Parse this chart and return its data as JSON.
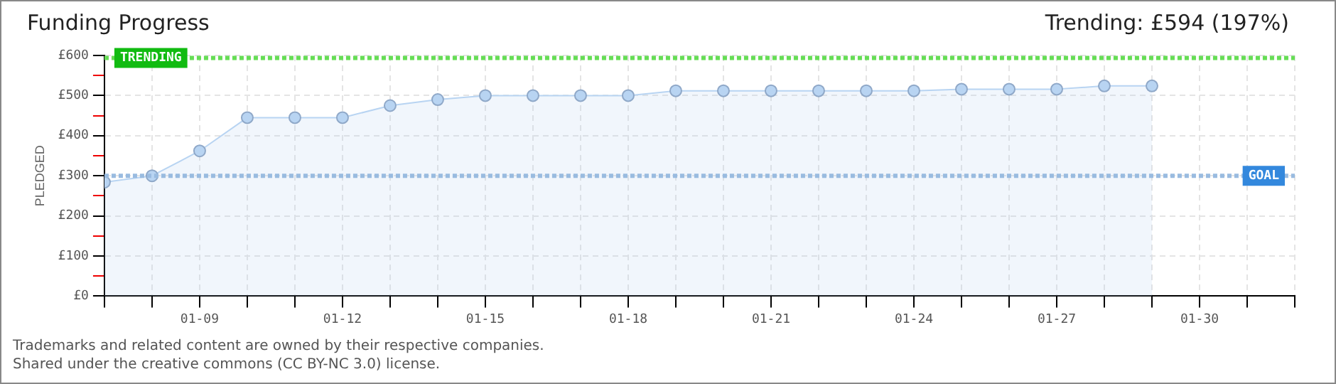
{
  "chart_data": {
    "type": "area",
    "title": "Funding Progress",
    "subtitle": "Trending: £594 (197%)",
    "ylabel": "PLEDGED",
    "x": [
      "--01-07",
      "--01-08",
      "--01-09",
      "--01-10",
      "--01-11",
      "--01-12",
      "--01-13",
      "--01-14",
      "--01-15",
      "--01-16",
      "--01-17",
      "--01-18",
      "--01-19",
      "--01-20",
      "--01-21",
      "--01-22",
      "--01-23",
      "--01-24",
      "--01-25",
      "--01-26",
      "--01-27",
      "--01-28",
      "--01-29"
    ],
    "series": [
      {
        "color": "#b8d4f2",
        "values": [
          284,
          300,
          362,
          445,
          445,
          445,
          475,
          490,
          500,
          500,
          500,
          500,
          512,
          512,
          512,
          512,
          512,
          512,
          516,
          516,
          516,
          524,
          524
        ]
      }
    ],
    "xlim": [
      "--01-07",
      "--02-01"
    ],
    "xticks": [
      {
        "value": "--01-07",
        "label": null
      },
      {
        "value": "--01-08",
        "label": null
      },
      {
        "value": "--01-09",
        "label": "01-09"
      },
      {
        "value": "--01-10",
        "label": null
      },
      {
        "value": "--01-11",
        "label": null
      },
      {
        "value": "--01-12",
        "label": "01-12"
      },
      {
        "value": "--01-13",
        "label": null
      },
      {
        "value": "--01-14",
        "label": null
      },
      {
        "value": "--01-15",
        "label": "01-15"
      },
      {
        "value": "--01-16",
        "label": null
      },
      {
        "value": "--01-17",
        "label": null
      },
      {
        "value": "--01-18",
        "label": "01-18"
      },
      {
        "value": "--01-19",
        "label": null
      },
      {
        "value": "--01-20",
        "label": null
      },
      {
        "value": "--01-21",
        "label": "01-21"
      },
      {
        "value": "--01-22",
        "label": null
      },
      {
        "value": "--01-23",
        "label": null
      },
      {
        "value": "--01-24",
        "label": "01-24"
      },
      {
        "value": "--01-25",
        "label": null
      },
      {
        "value": "--01-26",
        "label": null
      },
      {
        "value": "--01-27",
        "label": "01-27"
      },
      {
        "value": "--01-28",
        "label": null
      },
      {
        "value": "--01-29",
        "label": null
      },
      {
        "value": "--01-30",
        "label": "01-30"
      },
      {
        "value": "--01-31",
        "label": null
      },
      {
        "value": "--02-01",
        "label": null
      }
    ],
    "ylim": [
      0,
      600
    ],
    "yticks": [
      {
        "value": 0,
        "label": "£0"
      },
      {
        "value": 50,
        "label": null
      },
      {
        "value": 100,
        "label": "£100"
      },
      {
        "value": 150,
        "label": null
      },
      {
        "value": 200,
        "label": "£200"
      },
      {
        "value": 250,
        "label": null
      },
      {
        "value": 300,
        "label": "£300"
      },
      {
        "value": 350,
        "label": null
      },
      {
        "value": 400,
        "label": "£400"
      },
      {
        "value": 450,
        "label": null
      },
      {
        "value": 500,
        "label": "£500"
      },
      {
        "value": 550,
        "label": null
      },
      {
        "value": 600,
        "label": "£600"
      }
    ],
    "ref_lines": [
      {
        "axis": "y",
        "value": 594,
        "label": "TRENDING",
        "color": "#66dd55",
        "line_style": "dotted"
      },
      {
        "axis": "y",
        "value": 300,
        "label": "GOAL",
        "color": "#99bbe0",
        "line_style": "dotted"
      }
    ],
    "grid": true,
    "marker": "circle",
    "legend": false,
    "annotations": [
      "Trademarks and related content are owned by their respective companies.",
      "Shared under the creative commons (CC BY-NC 3.0) license."
    ]
  }
}
